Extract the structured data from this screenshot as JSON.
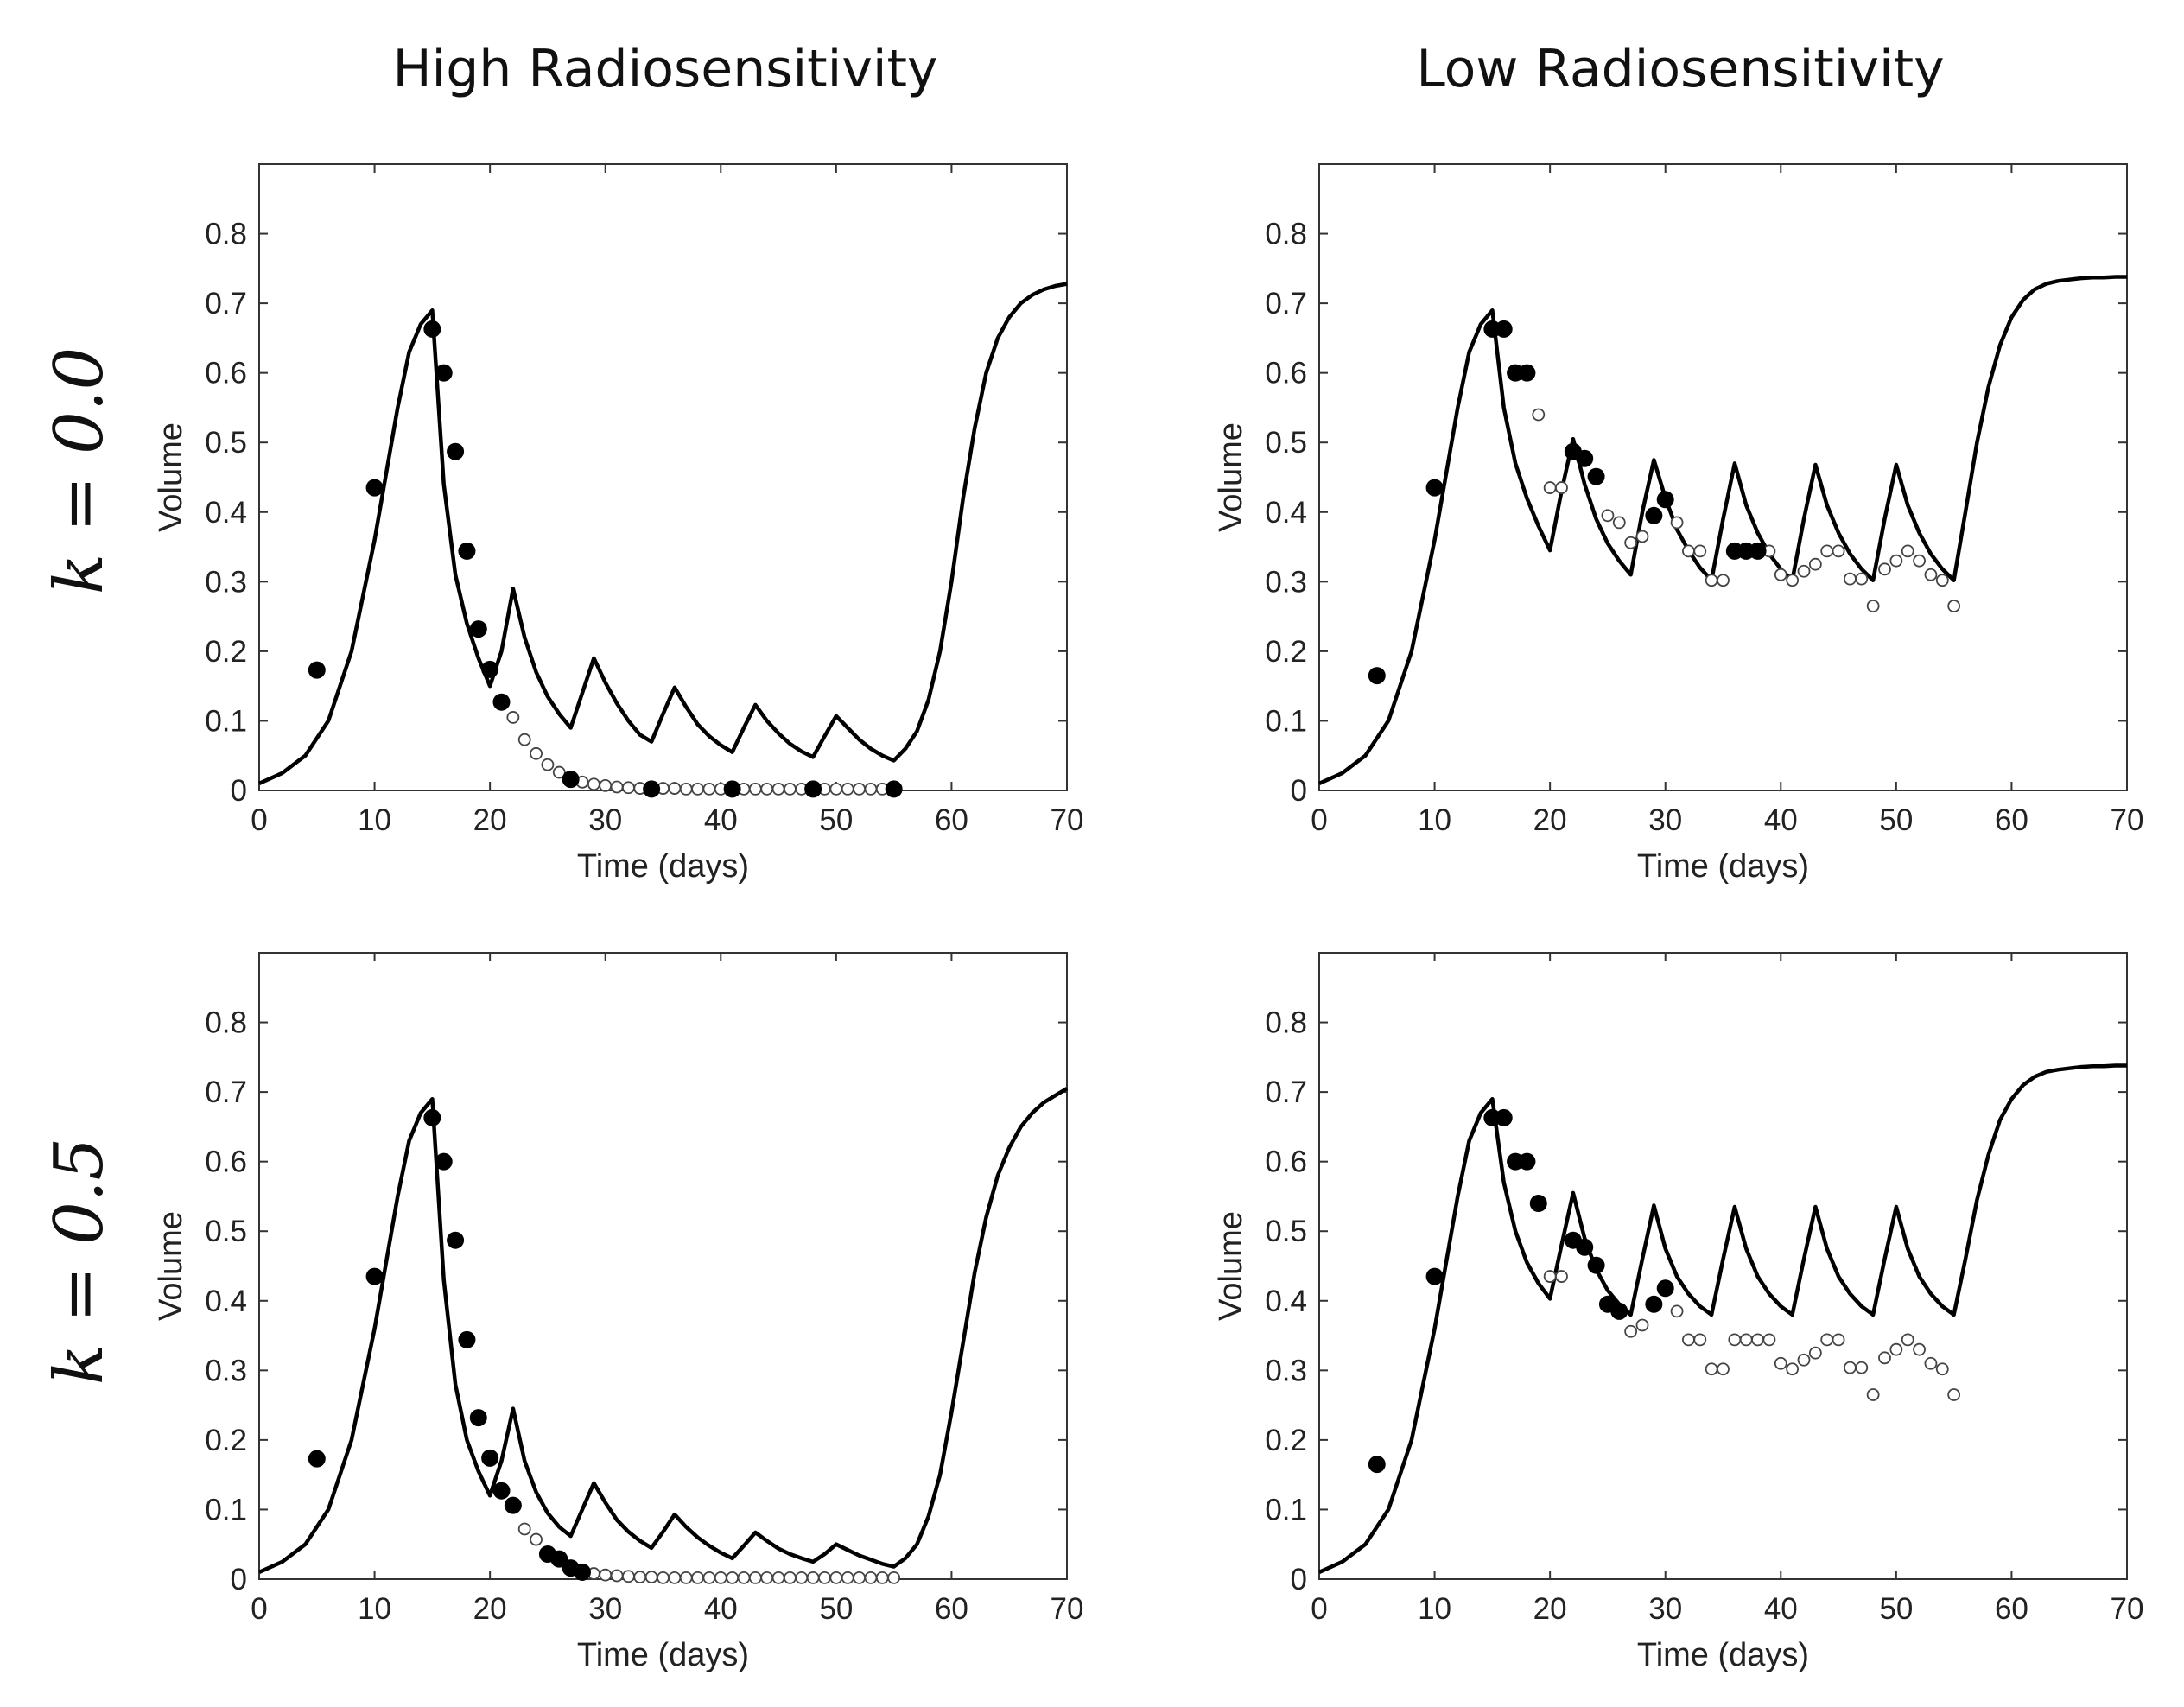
{
  "column_titles": [
    "High Radiosensitivity",
    "Low Radiosensitivity"
  ],
  "row_labels": [
    "k = 0.0",
    "k = 0.5"
  ],
  "chart_data": [
    {
      "type": "line",
      "xlabel": "Time (days)",
      "ylabel": "Volume",
      "xlim": [
        0,
        70
      ],
      "ylim": [
        0,
        0.9
      ],
      "xticks": [
        0,
        10,
        20,
        30,
        40,
        50,
        60,
        70
      ],
      "yticks": [
        0,
        0.1,
        0.2,
        0.3,
        0.4,
        0.5,
        0.6,
        0.7,
        0.8
      ],
      "grid": false,
      "curve": {
        "x": [
          0,
          2,
          4,
          6,
          8,
          10,
          12,
          13,
          14,
          15,
          16,
          17,
          18,
          19,
          20,
          21,
          22,
          23,
          24,
          25,
          26,
          27,
          28,
          29,
          30,
          31,
          32,
          33,
          34,
          35,
          36,
          37,
          38,
          39,
          40,
          41,
          42,
          43,
          44,
          45,
          46,
          47,
          48,
          49,
          50,
          51,
          52,
          53,
          54,
          55,
          56,
          57,
          58,
          59,
          60,
          61,
          62,
          63,
          64,
          65,
          66,
          67,
          68,
          69,
          70
        ],
        "y": [
          0.01,
          0.025,
          0.05,
          0.1,
          0.2,
          0.36,
          0.55,
          0.63,
          0.67,
          0.69,
          0.44,
          0.31,
          0.24,
          0.19,
          0.15,
          0.2,
          0.29,
          0.22,
          0.17,
          0.135,
          0.11,
          0.09,
          0.14,
          0.19,
          0.155,
          0.125,
          0.1,
          0.08,
          0.07,
          0.11,
          0.148,
          0.12,
          0.095,
          0.078,
          0.065,
          0.055,
          0.09,
          0.123,
          0.1,
          0.082,
          0.067,
          0.056,
          0.048,
          0.078,
          0.107,
          0.09,
          0.073,
          0.06,
          0.05,
          0.043,
          0.06,
          0.085,
          0.13,
          0.2,
          0.3,
          0.42,
          0.52,
          0.6,
          0.65,
          0.68,
          0.7,
          0.712,
          0.72,
          0.725,
          0.728
        ]
      },
      "filled_points": {
        "x": [
          5,
          10,
          15,
          16,
          17,
          18,
          19,
          20,
          21,
          27,
          34,
          41,
          48,
          55
        ],
        "y": [
          0.173,
          0.435,
          0.663,
          0.6,
          0.487,
          0.344,
          0.232,
          0.174,
          0.127,
          0.016,
          0.002,
          0.002,
          0.002,
          0.002
        ]
      },
      "open_points": {
        "x": [
          22,
          23,
          24,
          25,
          26,
          28,
          29,
          30,
          31,
          32,
          33,
          35,
          36,
          37,
          38,
          39,
          40,
          42,
          43,
          44,
          45,
          46,
          47,
          49,
          50,
          51,
          52,
          53,
          54
        ],
        "y": [
          0.105,
          0.073,
          0.053,
          0.037,
          0.026,
          0.012,
          0.009,
          0.007,
          0.005,
          0.004,
          0.003,
          0.003,
          0.003,
          0.002,
          0.002,
          0.002,
          0.002,
          0.002,
          0.002,
          0.002,
          0.002,
          0.002,
          0.002,
          0.002,
          0.002,
          0.002,
          0.002,
          0.002,
          0.002
        ]
      }
    },
    {
      "type": "line",
      "xlabel": "Time (days)",
      "ylabel": "Volume",
      "xlim": [
        0,
        70
      ],
      "ylim": [
        0,
        0.9
      ],
      "xticks": [
        0,
        10,
        20,
        30,
        40,
        50,
        60,
        70
      ],
      "yticks": [
        0,
        0.1,
        0.2,
        0.3,
        0.4,
        0.5,
        0.6,
        0.7,
        0.8
      ],
      "grid": false,
      "curve": {
        "x": [
          0,
          2,
          4,
          6,
          8,
          10,
          12,
          13,
          14,
          15,
          16,
          17,
          18,
          19,
          20,
          21,
          22,
          23,
          24,
          25,
          26,
          27,
          28,
          29,
          30,
          31,
          32,
          33,
          34,
          35,
          36,
          37,
          38,
          39,
          40,
          41,
          42,
          43,
          44,
          45,
          46,
          47,
          48,
          49,
          50,
          51,
          52,
          53,
          54,
          55,
          56,
          57,
          58,
          59,
          60,
          61,
          62,
          63,
          64,
          65,
          66,
          67,
          68,
          69,
          70
        ],
        "y": [
          0.01,
          0.025,
          0.05,
          0.1,
          0.2,
          0.36,
          0.55,
          0.63,
          0.67,
          0.69,
          0.55,
          0.47,
          0.42,
          0.38,
          0.345,
          0.43,
          0.505,
          0.44,
          0.39,
          0.355,
          0.33,
          0.31,
          0.4,
          0.475,
          0.42,
          0.375,
          0.345,
          0.32,
          0.302,
          0.39,
          0.47,
          0.41,
          0.37,
          0.34,
          0.318,
          0.302,
          0.39,
          0.468,
          0.41,
          0.37,
          0.34,
          0.318,
          0.302,
          0.39,
          0.468,
          0.41,
          0.37,
          0.34,
          0.318,
          0.302,
          0.4,
          0.5,
          0.58,
          0.64,
          0.68,
          0.705,
          0.72,
          0.728,
          0.732,
          0.734,
          0.736,
          0.737,
          0.737,
          0.738,
          0.738
        ]
      },
      "filled_points": {
        "x": [
          5,
          10,
          15,
          16,
          17,
          18,
          22,
          23,
          24,
          29,
          30,
          36,
          37,
          38
        ],
        "y": [
          0.165,
          0.435,
          0.663,
          0.663,
          0.6,
          0.6,
          0.487,
          0.477,
          0.451,
          0.395,
          0.418,
          0.344,
          0.344,
          0.344
        ]
      },
      "open_points": {
        "x": [
          19,
          20,
          21,
          25,
          26,
          27,
          28,
          31,
          32,
          33,
          34,
          35,
          39,
          40,
          41,
          42,
          43,
          44,
          45,
          46,
          47,
          48,
          49,
          50,
          51,
          52,
          53,
          54,
          55
        ],
        "y": [
          0.54,
          0.435,
          0.435,
          0.395,
          0.385,
          0.356,
          0.365,
          0.385,
          0.344,
          0.344,
          0.302,
          0.302,
          0.344,
          0.31,
          0.302,
          0.315,
          0.325,
          0.344,
          0.344,
          0.304,
          0.304,
          0.265,
          0.318,
          0.33,
          0.344,
          0.33,
          0.31,
          0.302,
          0.265
        ]
      }
    },
    {
      "type": "line",
      "xlabel": "Time (days)",
      "ylabel": "Volume",
      "xlim": [
        0,
        70
      ],
      "ylim": [
        0,
        0.9
      ],
      "xticks": [
        0,
        10,
        20,
        30,
        40,
        50,
        60,
        70
      ],
      "yticks": [
        0,
        0.1,
        0.2,
        0.3,
        0.4,
        0.5,
        0.6,
        0.7,
        0.8
      ],
      "grid": false,
      "curve": {
        "x": [
          0,
          2,
          4,
          6,
          8,
          10,
          12,
          13,
          14,
          15,
          16,
          17,
          18,
          19,
          20,
          21,
          22,
          23,
          24,
          25,
          26,
          27,
          28,
          29,
          30,
          31,
          32,
          33,
          34,
          35,
          36,
          37,
          38,
          39,
          40,
          41,
          42,
          43,
          44,
          45,
          46,
          47,
          48,
          49,
          50,
          51,
          52,
          53,
          54,
          55,
          56,
          57,
          58,
          59,
          60,
          61,
          62,
          63,
          64,
          65,
          66,
          67,
          68,
          69,
          70
        ],
        "y": [
          0.01,
          0.025,
          0.05,
          0.1,
          0.2,
          0.36,
          0.55,
          0.63,
          0.67,
          0.69,
          0.43,
          0.28,
          0.2,
          0.155,
          0.12,
          0.17,
          0.245,
          0.17,
          0.125,
          0.095,
          0.075,
          0.062,
          0.1,
          0.138,
          0.11,
          0.085,
          0.068,
          0.055,
          0.045,
          0.068,
          0.093,
          0.075,
          0.06,
          0.048,
          0.038,
          0.03,
          0.048,
          0.067,
          0.055,
          0.044,
          0.036,
          0.03,
          0.025,
          0.036,
          0.05,
          0.042,
          0.034,
          0.028,
          0.022,
          0.018,
          0.03,
          0.05,
          0.09,
          0.15,
          0.24,
          0.34,
          0.44,
          0.52,
          0.58,
          0.62,
          0.65,
          0.67,
          0.685,
          0.695,
          0.705
        ]
      },
      "filled_points": {
        "x": [
          5,
          10,
          15,
          16,
          17,
          18,
          19,
          20,
          21,
          22,
          25,
          26,
          27,
          28
        ],
        "y": [
          0.173,
          0.435,
          0.663,
          0.6,
          0.487,
          0.344,
          0.232,
          0.174,
          0.127,
          0.106,
          0.036,
          0.029,
          0.016,
          0.01
        ]
      },
      "open_points": {
        "x": [
          23,
          24,
          29,
          30,
          31,
          32,
          33,
          34,
          35,
          36,
          37,
          38,
          39,
          40,
          41,
          42,
          43,
          44,
          45,
          46,
          47,
          48,
          49,
          50,
          51,
          52,
          53,
          54,
          55
        ],
        "y": [
          0.072,
          0.057,
          0.008,
          0.006,
          0.005,
          0.004,
          0.003,
          0.003,
          0.002,
          0.002,
          0.002,
          0.002,
          0.002,
          0.002,
          0.002,
          0.002,
          0.002,
          0.002,
          0.002,
          0.002,
          0.002,
          0.002,
          0.002,
          0.002,
          0.002,
          0.002,
          0.002,
          0.002,
          0.002
        ]
      }
    },
    {
      "type": "line",
      "xlabel": "Time (days)",
      "ylabel": "Volume",
      "xlim": [
        0,
        70
      ],
      "ylim": [
        0,
        0.9
      ],
      "xticks": [
        0,
        10,
        20,
        30,
        40,
        50,
        60,
        70
      ],
      "yticks": [
        0,
        0.1,
        0.2,
        0.3,
        0.4,
        0.5,
        0.6,
        0.7,
        0.8
      ],
      "grid": false,
      "curve": {
        "x": [
          0,
          2,
          4,
          6,
          8,
          10,
          12,
          13,
          14,
          15,
          16,
          17,
          18,
          19,
          20,
          21,
          22,
          23,
          24,
          25,
          26,
          27,
          28,
          29,
          30,
          31,
          32,
          33,
          34,
          35,
          36,
          37,
          38,
          39,
          40,
          41,
          42,
          43,
          44,
          45,
          46,
          47,
          48,
          49,
          50,
          51,
          52,
          53,
          54,
          55,
          56,
          57,
          58,
          59,
          60,
          61,
          62,
          63,
          64,
          65,
          66,
          67,
          68,
          69,
          70
        ],
        "y": [
          0.01,
          0.025,
          0.05,
          0.1,
          0.2,
          0.36,
          0.55,
          0.63,
          0.67,
          0.69,
          0.57,
          0.5,
          0.455,
          0.425,
          0.403,
          0.48,
          0.555,
          0.49,
          0.445,
          0.415,
          0.395,
          0.38,
          0.46,
          0.537,
          0.475,
          0.435,
          0.41,
          0.392,
          0.38,
          0.46,
          0.535,
          0.475,
          0.435,
          0.41,
          0.392,
          0.38,
          0.46,
          0.535,
          0.475,
          0.435,
          0.41,
          0.392,
          0.38,
          0.46,
          0.535,
          0.475,
          0.435,
          0.41,
          0.392,
          0.38,
          0.46,
          0.545,
          0.61,
          0.66,
          0.69,
          0.71,
          0.722,
          0.729,
          0.732,
          0.734,
          0.736,
          0.737,
          0.737,
          0.738,
          0.738
        ]
      },
      "filled_points": {
        "x": [
          5,
          10,
          15,
          16,
          17,
          18,
          19,
          22,
          23,
          24,
          25,
          26,
          29,
          30
        ],
        "y": [
          0.165,
          0.435,
          0.663,
          0.663,
          0.6,
          0.6,
          0.54,
          0.487,
          0.477,
          0.451,
          0.395,
          0.385,
          0.395,
          0.418
        ]
      },
      "open_points": {
        "x": [
          20,
          21,
          27,
          28,
          31,
          32,
          33,
          34,
          35,
          36,
          37,
          38,
          39,
          40,
          41,
          42,
          43,
          44,
          45,
          46,
          47,
          48,
          49,
          50,
          51,
          52,
          53,
          54,
          55
        ],
        "y": [
          0.435,
          0.435,
          0.356,
          0.365,
          0.385,
          0.344,
          0.344,
          0.302,
          0.302,
          0.344,
          0.344,
          0.344,
          0.344,
          0.31,
          0.302,
          0.315,
          0.325,
          0.344,
          0.344,
          0.304,
          0.304,
          0.265,
          0.318,
          0.33,
          0.344,
          0.33,
          0.31,
          0.302,
          0.265
        ]
      }
    }
  ]
}
